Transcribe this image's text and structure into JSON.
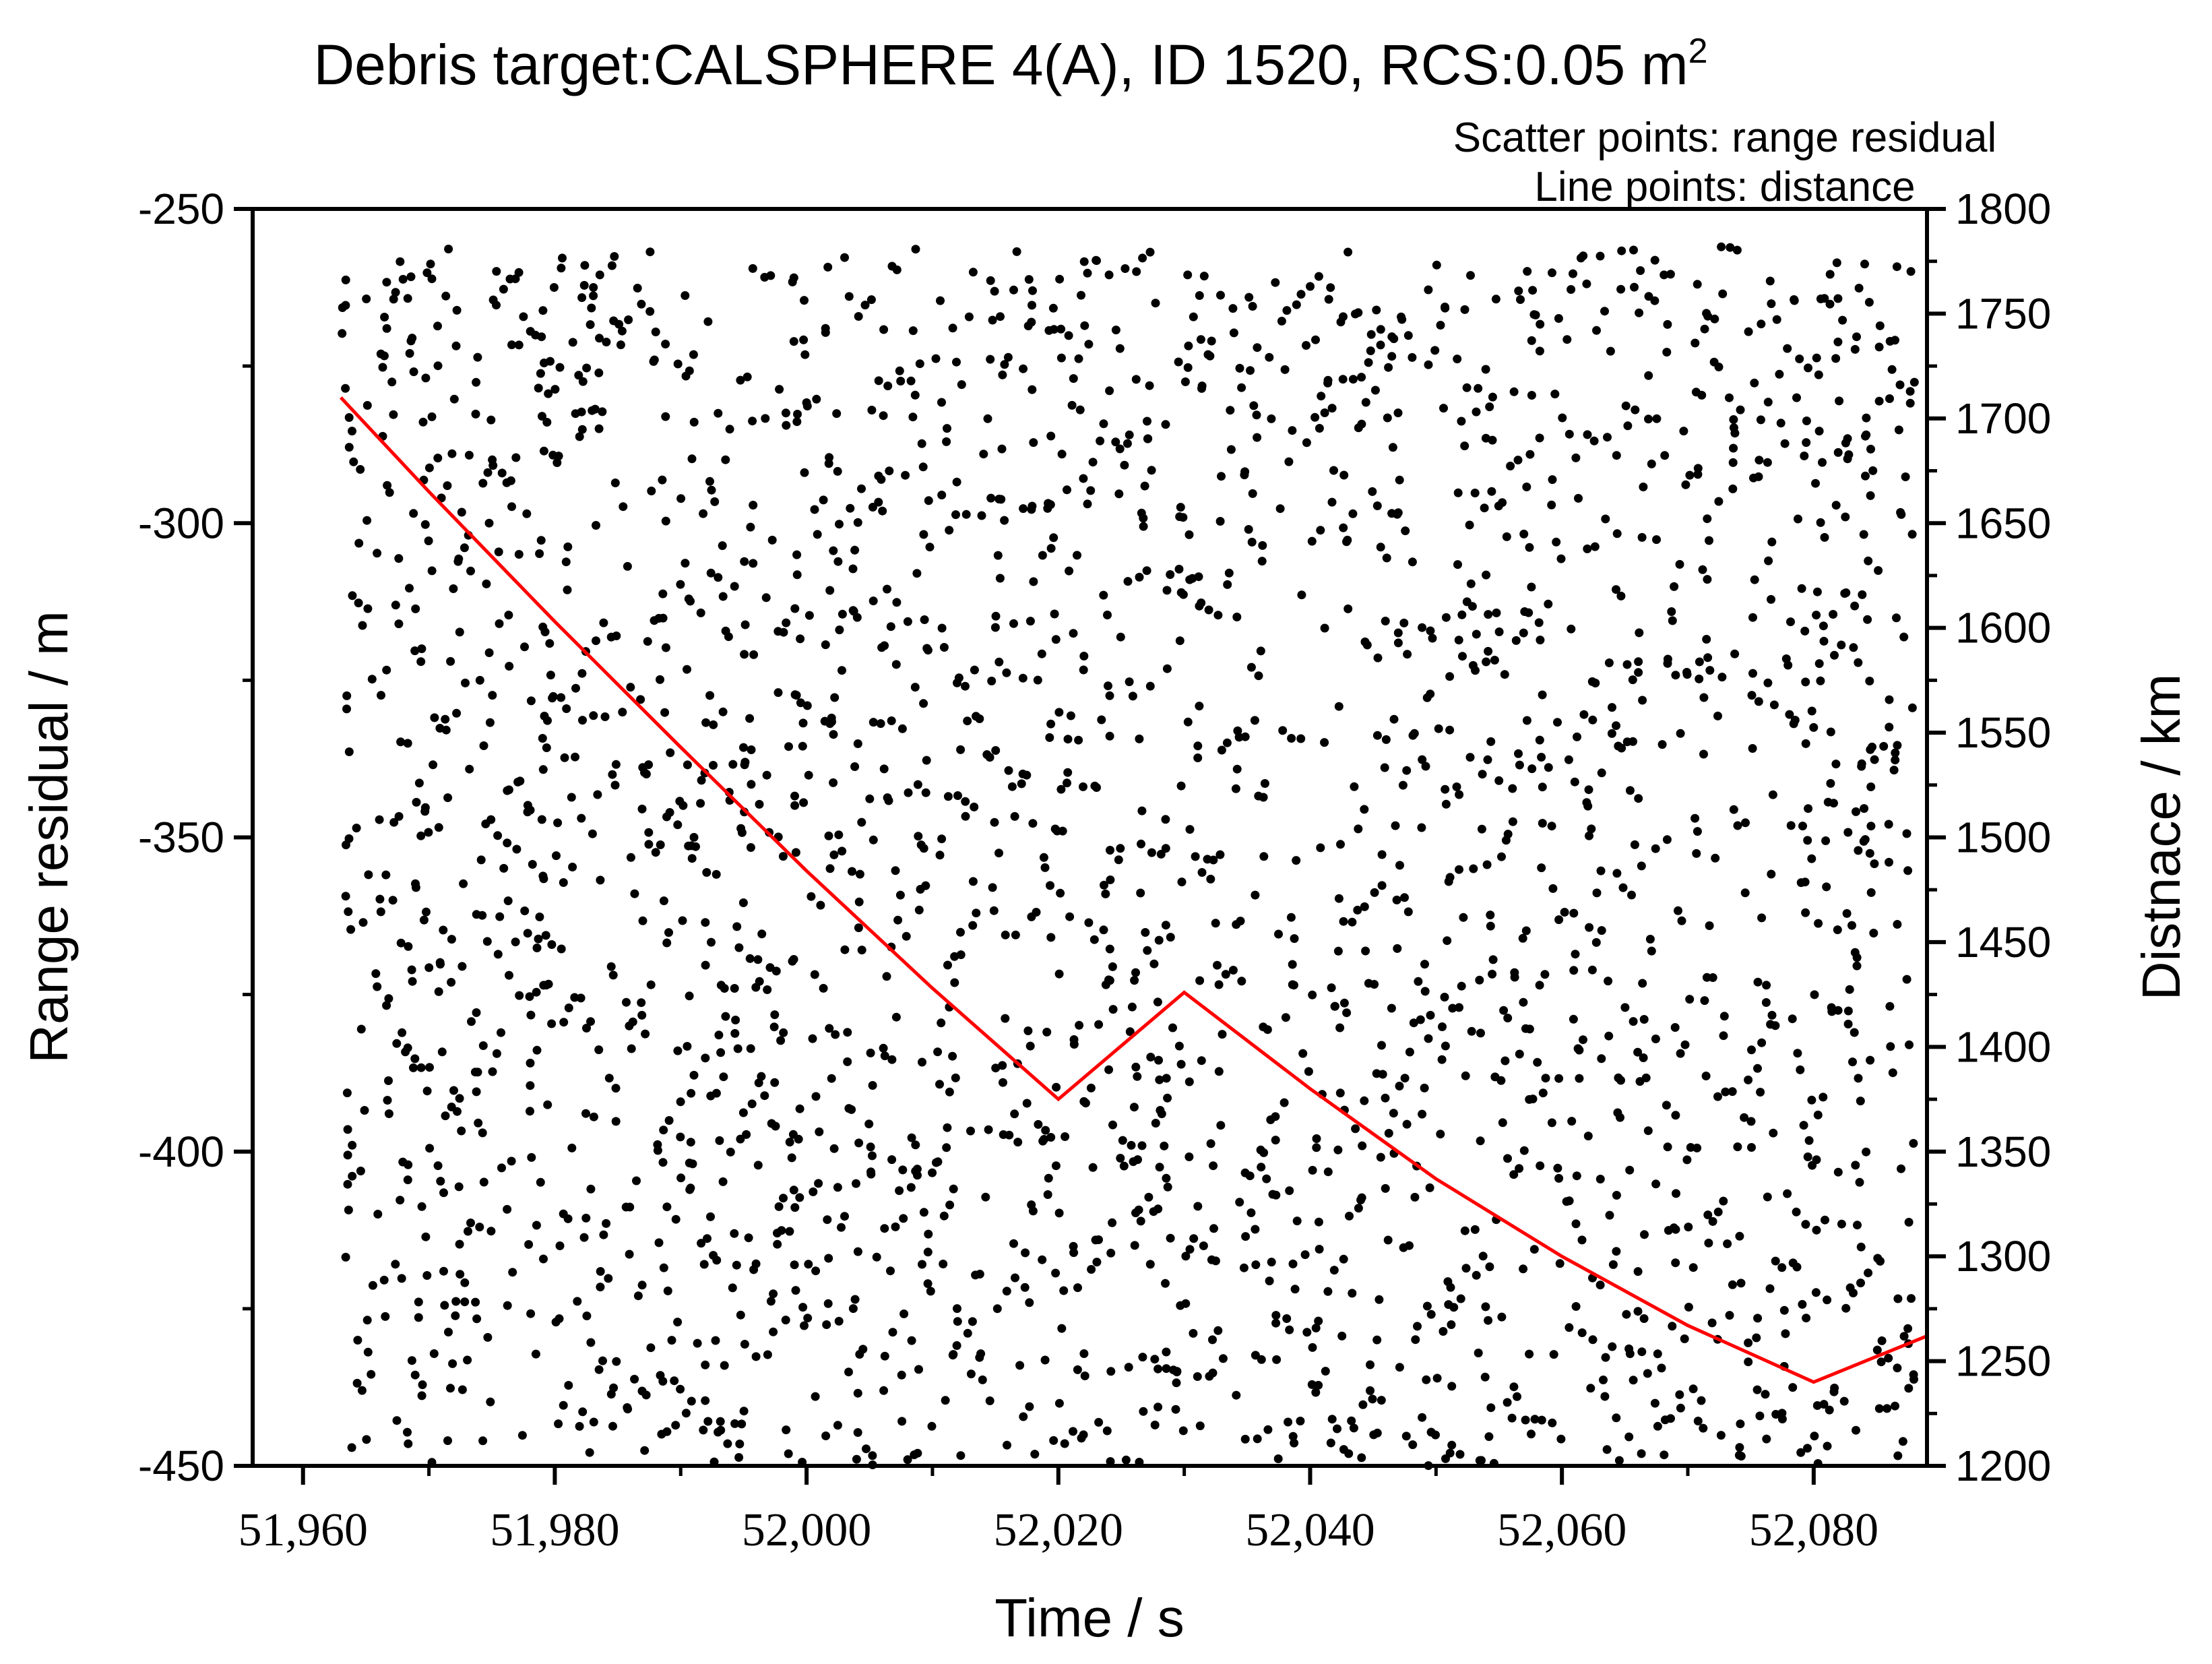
{
  "chart_data": {
    "type": "scatter",
    "title": "Debris target:CALSPHERE 4(A), ID 1520, RCS:0.05 m",
    "title_superscript": "2",
    "annotations": [
      "Scatter points: range residual",
      "Line points: distance"
    ],
    "xlabel": "Time / s",
    "ylabel": "Range residual / m",
    "y2label": "Distnace / km",
    "xlim": [
      51956,
      52089
    ],
    "ylim": [
      -450,
      -250
    ],
    "y2lim": [
      1200,
      1800
    ],
    "x_ticks": [
      51960,
      51980,
      52000,
      52020,
      52040,
      52060,
      52080
    ],
    "x_tick_labels": [
      "51,960",
      "51,980",
      "52,000",
      "52,020",
      "52,040",
      "52,060",
      "52,080"
    ],
    "y_ticks": [
      -250,
      -300,
      -350,
      -400,
      -450
    ],
    "y_tick_labels": [
      "-250",
      "-300",
      "-350",
      "-400",
      "-450"
    ],
    "y2_ticks": [
      1800,
      1750,
      1700,
      1650,
      1600,
      1550,
      1500,
      1450,
      1400,
      1350,
      1300,
      1250,
      1200
    ],
    "y2_tick_labels": [
      "1800",
      "1750",
      "1700",
      "1650",
      "1600",
      "1550",
      "1500",
      "1450",
      "1400",
      "1350",
      "1300",
      "1250",
      "1200"
    ],
    "series": [
      {
        "name": "range residual",
        "kind": "scatter",
        "color": "#000000",
        "x_range": [
          51963,
          52088
        ],
        "y_range": [
          -450,
          -256
        ],
        "count": 2600,
        "note": "dense uniform noise across the full plot area"
      },
      {
        "name": "distance",
        "kind": "line",
        "color": "#ff0000",
        "axis": "right",
        "x": [
          51963,
          51970,
          51980,
          51990,
          52000,
          52010,
          52020,
          52030,
          52040,
          52050,
          52060,
          52070,
          52080,
          52089
        ],
        "y": [
          1710,
          1665,
          1603,
          1543,
          1484,
          1428,
          1375,
          1426,
          1380,
          1337,
          1300,
          1267,
          1240,
          1262
        ]
      }
    ]
  }
}
